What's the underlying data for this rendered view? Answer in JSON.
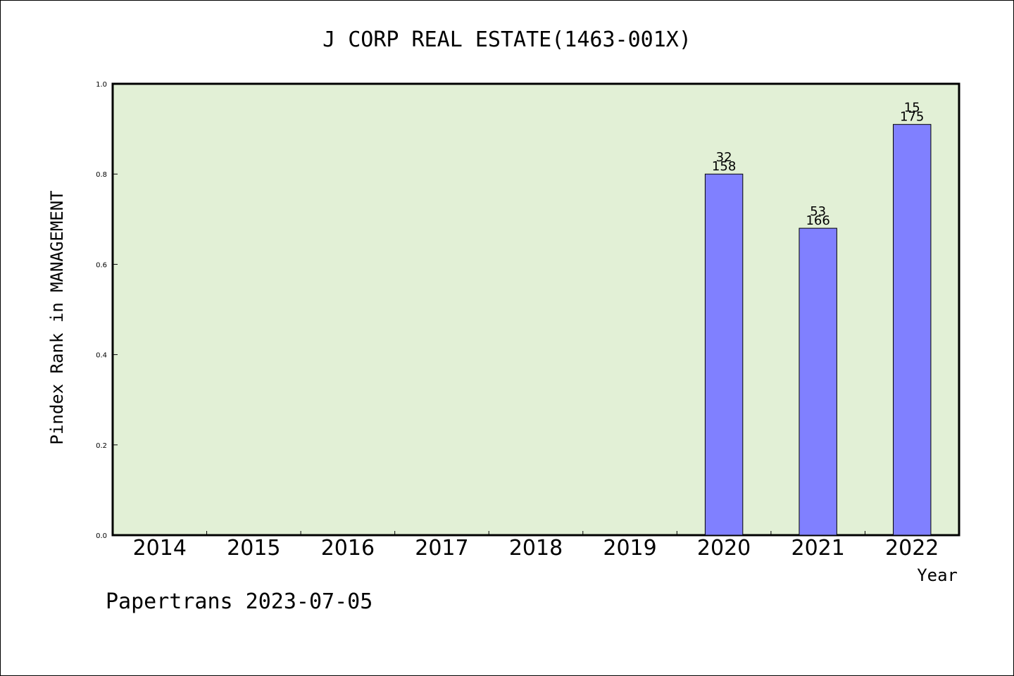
{
  "chart_data": {
    "type": "bar",
    "title": "J CORP REAL ESTATE(1463-001X)",
    "xlabel": "Year",
    "ylabel": "Pindex Rank in MANAGEMENT",
    "footer": "Papertrans 2023-07-05",
    "categories": [
      "2014",
      "2015",
      "2016",
      "2017",
      "2018",
      "2019",
      "2020",
      "2021",
      "2022"
    ],
    "values": [
      null,
      null,
      null,
      null,
      null,
      null,
      0.8,
      0.68,
      0.91
    ],
    "bar_labels_top": [
      "",
      "",
      "",
      "",
      "",
      "",
      "32",
      "53",
      "15"
    ],
    "bar_labels_bottom": [
      "",
      "",
      "",
      "",
      "",
      "",
      "158",
      "166",
      "175"
    ],
    "ylim": [
      0,
      1.0
    ],
    "yticks": [
      "0.0",
      "0.2",
      "0.4",
      "0.6",
      "0.8",
      "1.0"
    ],
    "colors": {
      "plot_background": "#e2f0d6",
      "bar_fill": "#8080ff",
      "bar_stroke": "#000000",
      "frame": "#000000"
    },
    "grid": false,
    "legend": "none"
  }
}
